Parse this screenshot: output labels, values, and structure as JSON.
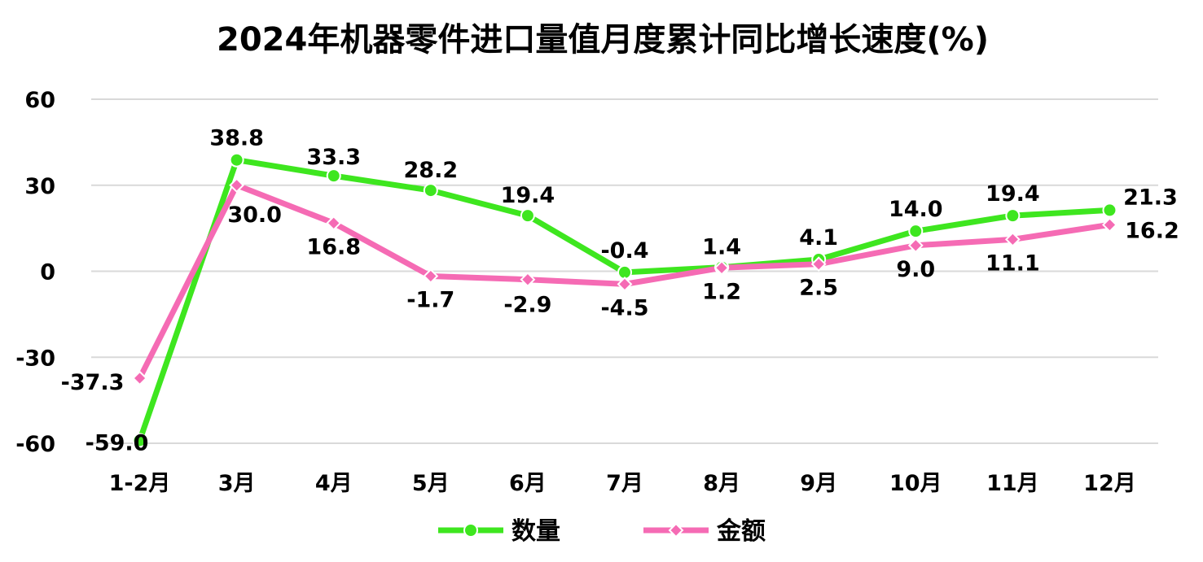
{
  "chart_data": {
    "type": "line",
    "title": "2024年机器零件进口量值月度累计同比增长速度(%)",
    "categories": [
      "1-2月",
      "3月",
      "4月",
      "5月",
      "6月",
      "7月",
      "8月",
      "9月",
      "10月",
      "11月",
      "12月"
    ],
    "yticks": [
      60,
      30,
      0,
      -30,
      -60
    ],
    "ylim": [
      -60,
      60
    ],
    "grid": true,
    "legend_position": "bottom",
    "series": [
      {
        "name": "数量",
        "color": "#3ee61f",
        "marker": "circle",
        "values": [
          -59.0,
          38.8,
          33.3,
          28.2,
          19.4,
          -0.4,
          1.4,
          4.1,
          14.0,
          19.4,
          21.3
        ],
        "labels": [
          "-59.0",
          "38.8",
          "33.3",
          "28.2",
          "19.4",
          "-0.4",
          "1.4",
          "4.1",
          "14.0",
          "19.4",
          "21.3"
        ]
      },
      {
        "name": "金额",
        "color": "#f56bb4",
        "marker": "diamond",
        "values": [
          -37.3,
          30.0,
          16.8,
          -1.7,
          -2.9,
          -4.5,
          1.2,
          2.5,
          9.0,
          11.1,
          16.2
        ],
        "labels": [
          "-37.3",
          "30.0",
          "16.8",
          "-1.7",
          "-2.9",
          "-4.5",
          "1.2",
          "2.5",
          "9.0",
          "11.1",
          "16.2"
        ]
      }
    ]
  }
}
